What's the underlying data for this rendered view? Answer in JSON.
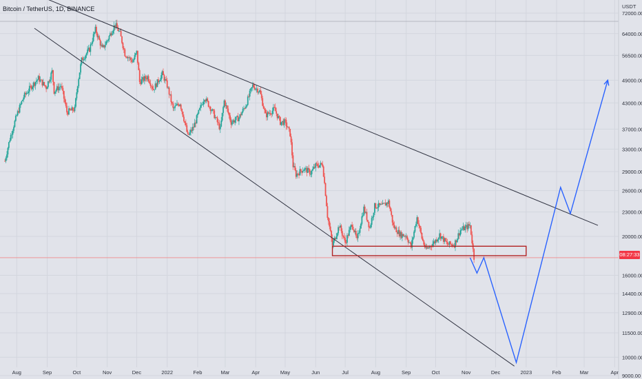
{
  "header": {
    "title": "Bitcoin / TetherUS, 1D, BINANCE"
  },
  "last_price_tag": "08:27:33",
  "colors": {
    "bg": "#e1e3ea",
    "up": "#26a69a",
    "down": "#ef5350",
    "trendline": "#2f3240",
    "projection": "#2962ff",
    "support": "#b22222"
  },
  "chart_data": {
    "type": "candlestick",
    "title": "Bitcoin / TetherUS, 1D, BINANCE",
    "y_scale": "log",
    "y_unit": "USDT",
    "ylim": [
      9000,
      84000
    ],
    "x_range": [
      "2021-07-15",
      "2023-04-05"
    ],
    "x_ticks": [
      {
        "label": "Aug",
        "date": "2021-08-01"
      },
      {
        "label": "Sep",
        "date": "2021-09-01"
      },
      {
        "label": "Oct",
        "date": "2021-10-01"
      },
      {
        "label": "Nov",
        "date": "2021-11-01"
      },
      {
        "label": "Dec",
        "date": "2021-12-01"
      },
      {
        "label": "2022",
        "date": "2022-01-01"
      },
      {
        "label": "Feb",
        "date": "2022-02-01"
      },
      {
        "label": "Mar",
        "date": "2022-03-01"
      },
      {
        "label": "Apr",
        "date": "2022-04-01"
      },
      {
        "label": "May",
        "date": "2022-05-01"
      },
      {
        "label": "Jun",
        "date": "2022-06-01"
      },
      {
        "label": "Jul",
        "date": "2022-07-01"
      },
      {
        "label": "Aug",
        "date": "2022-08-01"
      },
      {
        "label": "Sep",
        "date": "2022-09-01"
      },
      {
        "label": "Oct",
        "date": "2022-10-01"
      },
      {
        "label": "Nov",
        "date": "2022-11-01"
      },
      {
        "label": "Dec",
        "date": "2022-12-01"
      },
      {
        "label": "2023",
        "date": "2023-01-01"
      },
      {
        "label": "Feb",
        "date": "2023-02-01"
      },
      {
        "label": "Mar",
        "date": "2023-03-01"
      },
      {
        "label": "Apr",
        "date": "2023-04-01"
      }
    ],
    "y_ticks": [
      {
        "label": "USDT",
        "value": null
      },
      {
        "label": "72000.00",
        "value": 72000
      },
      {
        "label": "64000.00",
        "value": 64000
      },
      {
        "label": "56500.00",
        "value": 56500
      },
      {
        "label": "49000.00",
        "value": 49000
      },
      {
        "label": "43000.00",
        "value": 43000
      },
      {
        "label": "37000.00",
        "value": 37000
      },
      {
        "label": "33000.00",
        "value": 33000
      },
      {
        "label": "29000.00",
        "value": 29000
      },
      {
        "label": "26000.00",
        "value": 26000
      },
      {
        "label": "23000.00",
        "value": 23000
      },
      {
        "label": "20000.00",
        "value": 20000
      },
      {
        "label": "16000.00",
        "value": 16000
      },
      {
        "label": "14400.00",
        "value": 14400
      },
      {
        "label": "12900.00",
        "value": 12900
      },
      {
        "label": "11500.00",
        "value": 11500
      },
      {
        "label": "10000.00",
        "value": 10000
      },
      {
        "label": "9000.00",
        "value": 9000
      }
    ],
    "price_path": [
      [
        "2021-07-20",
        30800
      ],
      [
        "2021-07-25",
        35000
      ],
      [
        "2021-08-01",
        40000
      ],
      [
        "2021-08-08",
        44500
      ],
      [
        "2021-08-15",
        47000
      ],
      [
        "2021-08-23",
        49500
      ],
      [
        "2021-08-31",
        47000
      ],
      [
        "2021-09-06",
        51500
      ],
      [
        "2021-09-08",
        46000
      ],
      [
        "2021-09-15",
        47500
      ],
      [
        "2021-09-21",
        40800
      ],
      [
        "2021-09-29",
        41500
      ],
      [
        "2021-10-02",
        48000
      ],
      [
        "2021-10-06",
        55000
      ],
      [
        "2021-10-14",
        58500
      ],
      [
        "2021-10-20",
        65500
      ],
      [
        "2021-10-27",
        58500
      ],
      [
        "2021-11-01",
        61500
      ],
      [
        "2021-11-09",
        67500
      ],
      [
        "2021-11-14",
        64000
      ],
      [
        "2021-11-19",
        57000
      ],
      [
        "2021-11-27",
        54500
      ],
      [
        "2021-12-01",
        57500
      ],
      [
        "2021-12-04",
        48500
      ],
      [
        "2021-12-12",
        50000
      ],
      [
        "2021-12-18",
        46500
      ],
      [
        "2021-12-27",
        50800
      ],
      [
        "2022-01-01",
        47500
      ],
      [
        "2022-01-07",
        41500
      ],
      [
        "2022-01-14",
        43000
      ],
      [
        "2022-01-22",
        35500
      ],
      [
        "2022-01-28",
        37500
      ],
      [
        "2022-02-08",
        44500
      ],
      [
        "2022-02-10",
        43500
      ],
      [
        "2022-02-17",
        40500
      ],
      [
        "2022-02-24",
        37000
      ],
      [
        "2022-02-28",
        43500
      ],
      [
        "2022-03-07",
        38500
      ],
      [
        "2022-03-15",
        39500
      ],
      [
        "2022-03-22",
        42500
      ],
      [
        "2022-03-29",
        47500
      ],
      [
        "2022-04-05",
        46000
      ],
      [
        "2022-04-11",
        40000
      ],
      [
        "2022-04-20",
        41500
      ],
      [
        "2022-04-26",
        38500
      ],
      [
        "2022-05-01",
        38500
      ],
      [
        "2022-05-06",
        36000
      ],
      [
        "2022-05-09",
        30000
      ],
      [
        "2022-05-12",
        28500
      ],
      [
        "2022-05-20",
        29500
      ],
      [
        "2022-05-27",
        28800
      ],
      [
        "2022-06-01",
        30000
      ],
      [
        "2022-06-08",
        30200
      ],
      [
        "2022-06-13",
        22500
      ],
      [
        "2022-06-18",
        19000
      ],
      [
        "2022-06-25",
        21300
      ],
      [
        "2022-07-01",
        19300
      ],
      [
        "2022-07-08",
        21500
      ],
      [
        "2022-07-13",
        19500
      ],
      [
        "2022-07-20",
        23500
      ],
      [
        "2022-07-26",
        21000
      ],
      [
        "2022-07-31",
        23800
      ],
      [
        "2022-08-08",
        23800
      ],
      [
        "2022-08-14",
        24400
      ],
      [
        "2022-08-19",
        21200
      ],
      [
        "2022-08-26",
        20200
      ],
      [
        "2022-09-01",
        20100
      ],
      [
        "2022-09-06",
        18800
      ],
      [
        "2022-09-12",
        22300
      ],
      [
        "2022-09-17",
        19800
      ],
      [
        "2022-09-21",
        18500
      ],
      [
        "2022-09-30",
        19400
      ],
      [
        "2022-10-05",
        20200
      ],
      [
        "2022-10-13",
        19100
      ],
      [
        "2022-10-20",
        19100
      ],
      [
        "2022-10-26",
        20700
      ],
      [
        "2022-11-05",
        21300
      ],
      [
        "2022-11-08",
        18500
      ],
      [
        "2022-11-09",
        17700
      ]
    ],
    "last_price": 17700,
    "trendlines": [
      {
        "name": "upper-resistance",
        "from": [
          "2021-07-31",
          84000
        ],
        "to": [
          "2023-03-15",
          21300
        ]
      },
      {
        "name": "lower-support",
        "from": [
          "2021-08-19",
          66000
        ],
        "to": [
          "2022-12-20",
          9500
        ]
      }
    ],
    "support_zone": {
      "from": "2022-06-18",
      "to": "2023-01-01",
      "low": 17900,
      "high": 18900
    },
    "projection_path": [
      [
        "2022-11-05",
        17700
      ],
      [
        "2022-11-12",
        16200
      ],
      [
        "2022-11-19",
        17700
      ],
      [
        "2022-12-22",
        9700
      ],
      [
        "2023-02-05",
        26500
      ],
      [
        "2023-02-15",
        22800
      ],
      [
        "2023-03-25",
        49000
      ]
    ]
  }
}
